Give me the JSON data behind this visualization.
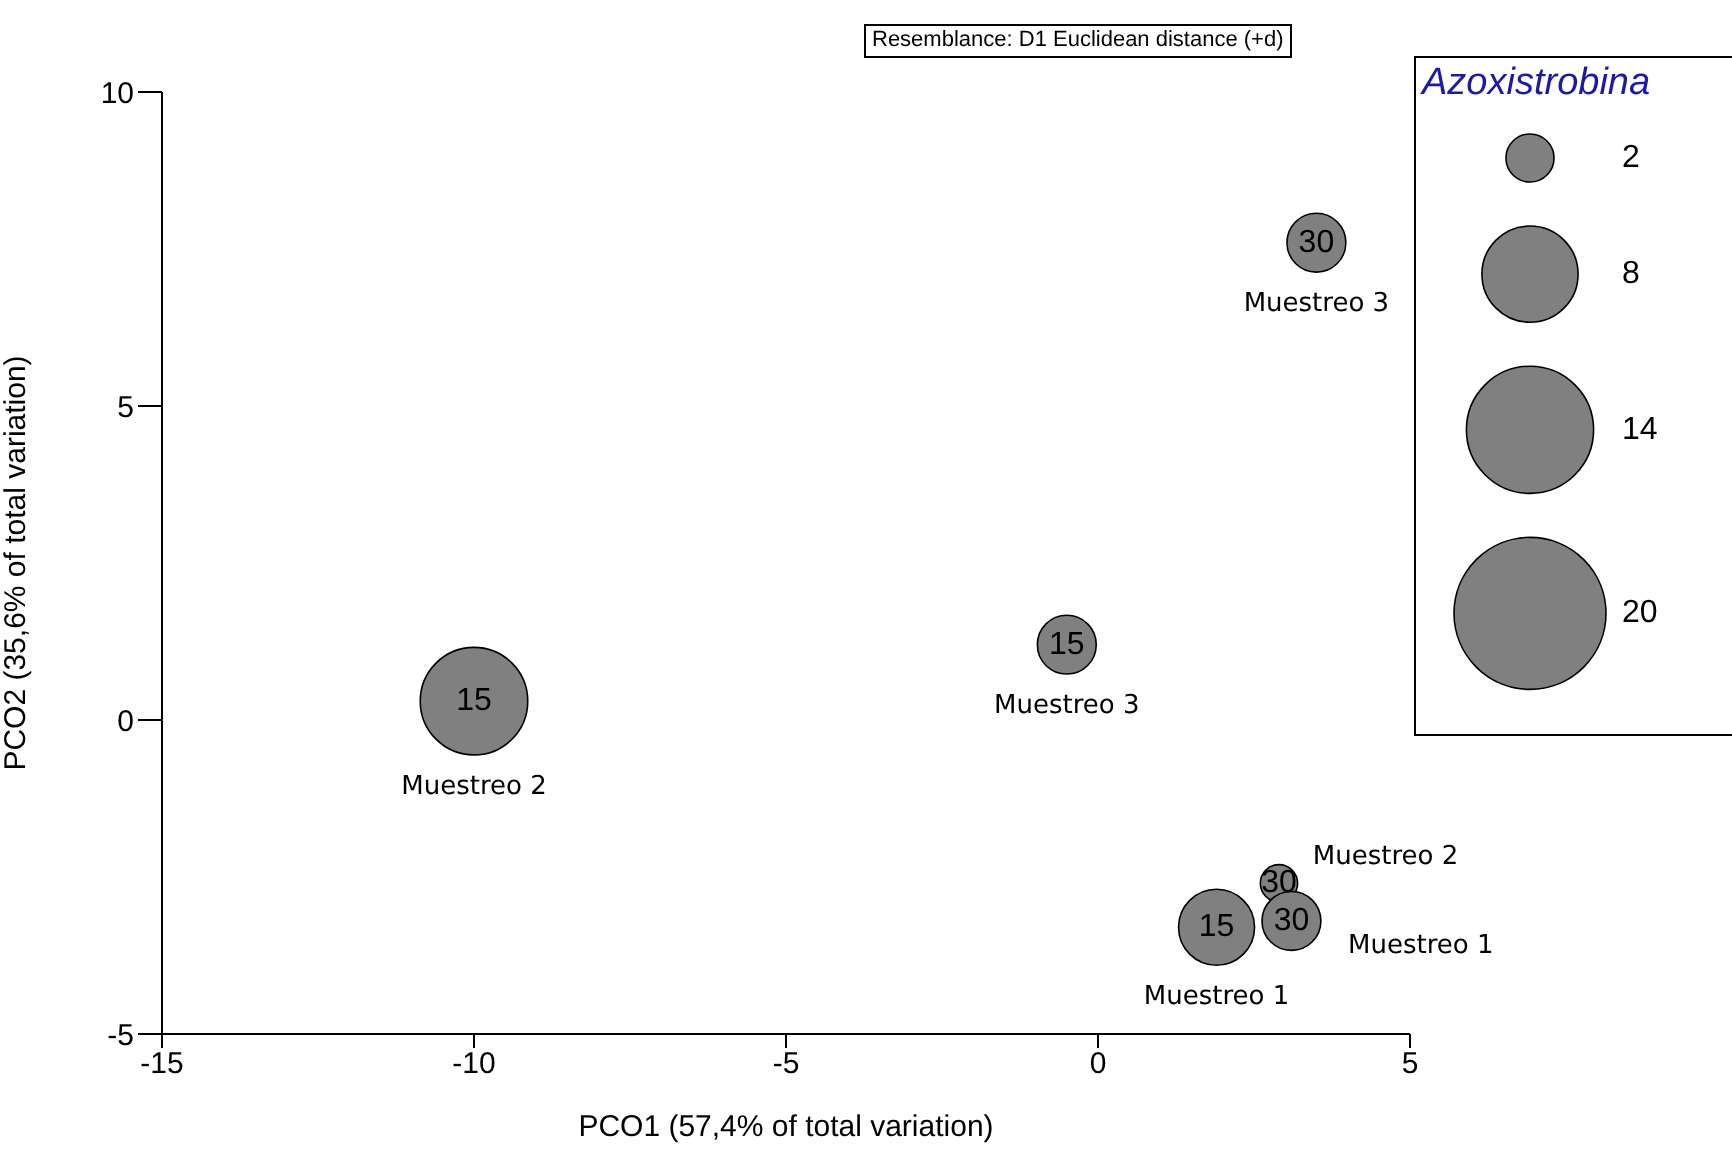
{
  "chart_data": {
    "type": "bubble",
    "xlabel": "PCO1 (57,4% of total variation)",
    "ylabel": "PCO2 (35,6% of total variation)",
    "legend_title": "Azoxistrobina",
    "grid": false,
    "series": [
      {
        "color": "#808080",
        "x": [
          -10.0,
          -0.5,
          3.5,
          2.9,
          1.9,
          3.1
        ],
        "values": [
          0.3,
          1.2,
          7.6,
          -2.6,
          -3.3,
          -3.2
        ],
        "sizes": [
          10,
          3,
          3,
          1.2,
          5,
          3
        ]
      }
    ],
    "size_legend": [
      2,
      8,
      14,
      20
    ],
    "xlim": [
      -15,
      5
    ],
    "xticks": [
      -15,
      -10,
      -5,
      0,
      5
    ],
    "ylim": [
      -5,
      10
    ],
    "yticks": [
      -5,
      0,
      5,
      10
    ],
    "annotations": [
      "Resemblance: D1 Euclidean distance (+d)",
      {
        "text": "15",
        "x": -10.0,
        "y": 0.3
      },
      {
        "text": "15",
        "x": -0.5,
        "y": 1.2
      },
      {
        "text": "30",
        "x": 3.5,
        "y": 7.6
      },
      {
        "text": "30",
        "x": 2.9,
        "y": -2.6
      },
      {
        "text": "15",
        "x": 1.9,
        "y": -3.3
      },
      {
        "text": "30",
        "x": 3.1,
        "y": -3.2
      },
      {
        "text": "Muestreo 2",
        "x": -10.0,
        "y": 0.3
      },
      {
        "text": "Muestreo 3",
        "x": -0.5,
        "y": 1.2
      },
      {
        "text": "Muestreo 3",
        "x": 3.5,
        "y": 7.6
      },
      {
        "text": "Muestreo 2",
        "x": 2.9,
        "y": -2.6
      },
      {
        "text": "Muestreo 1",
        "x": 1.9,
        "y": -3.3
      },
      {
        "text": "Muestreo 1",
        "x": 3.1,
        "y": -3.2
      }
    ]
  }
}
